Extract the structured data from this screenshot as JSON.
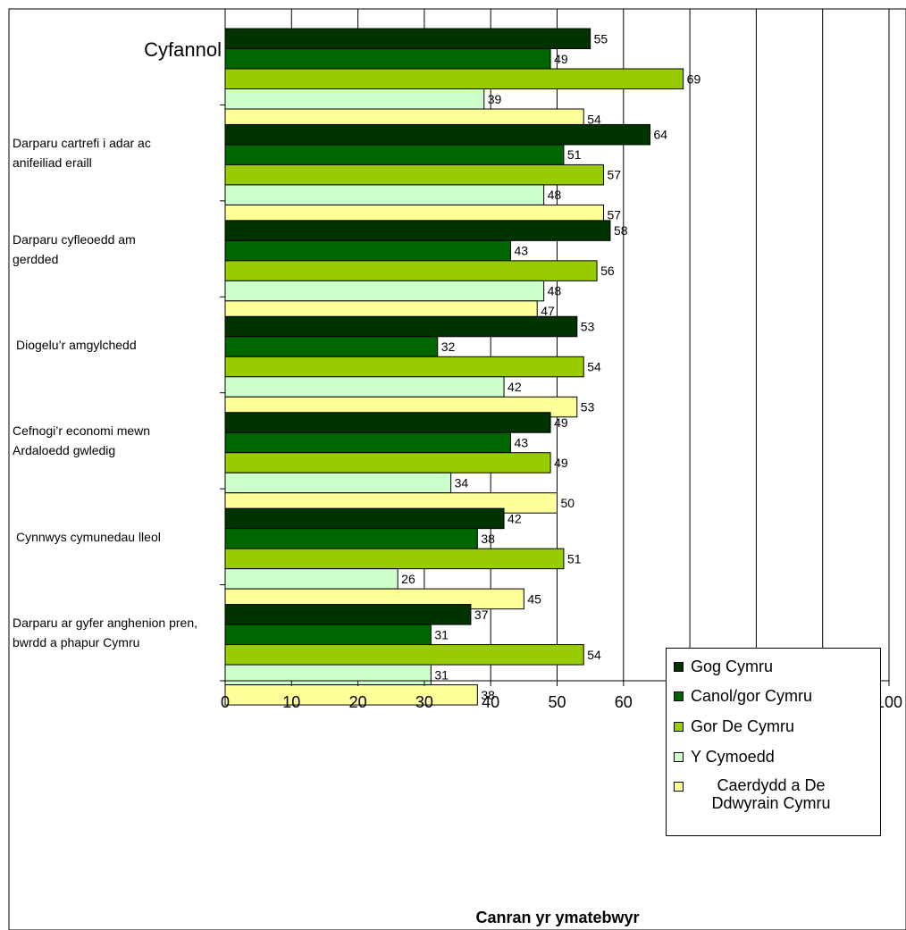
{
  "chart_data": {
    "type": "bar",
    "orientation": "horizontal",
    "title": "",
    "xlabel": "Canran yr ymatebwyr",
    "ylabel": "",
    "xlim": [
      0,
      100
    ],
    "xticks": [
      "0",
      "10",
      "20",
      "30",
      "40",
      "50",
      "60",
      "70",
      "80",
      "90",
      "100"
    ],
    "grid": true,
    "legend_position": "bottom-right",
    "categories": [
      "Cyfannol",
      "Darparu cartrefi i adar ac anifeiliad eraill",
      "Darparu cyfleoedd am gerdded",
      "Diogelu’r amgylchedd",
      "Cefnogi’r economi mewn Ardaloedd gwledig",
      "Cynnwys cymunedau lleol",
      "Darparu ar gyfer anghenion pren, bwrdd a phapur Cymru"
    ],
    "category_lines": [
      [
        "Cyfannol"
      ],
      [
        "Darparu cartrefi i adar ac",
        "anifeiliad eraill"
      ],
      [
        "Darparu cyfleoedd am",
        "gerdded"
      ],
      [
        "Diogelu’r amgylchedd"
      ],
      [
        "Cefnogi’r economi mewn",
        "Ardaloedd gwledig"
      ],
      [
        "Cynnwys cymunedau lleol"
      ],
      [
        "Darparu ar gyfer anghenion pren,",
        "bwrdd a phapur Cymru"
      ]
    ],
    "series": [
      {
        "name": "Gog Cymru",
        "color": "#003300",
        "values": [
          55,
          64,
          58,
          53,
          49,
          42,
          37
        ]
      },
      {
        "name": "Canol/gor Cymru",
        "color": "#006600",
        "values": [
          49,
          51,
          43,
          32,
          43,
          38,
          31
        ]
      },
      {
        "name": "Gor De Cymru",
        "color": "#99CC00",
        "values": [
          69,
          57,
          56,
          54,
          49,
          51,
          54
        ]
      },
      {
        "name": "Y Cymoedd",
        "color": "#CCFFCC",
        "values": [
          39,
          48,
          48,
          42,
          34,
          26,
          31
        ]
      },
      {
        "name": "Caerdydd a De Ddwyrain Cymru",
        "color": "#FFFF99",
        "values": [
          54,
          57,
          47,
          53,
          50,
          45,
          38
        ]
      }
    ]
  }
}
